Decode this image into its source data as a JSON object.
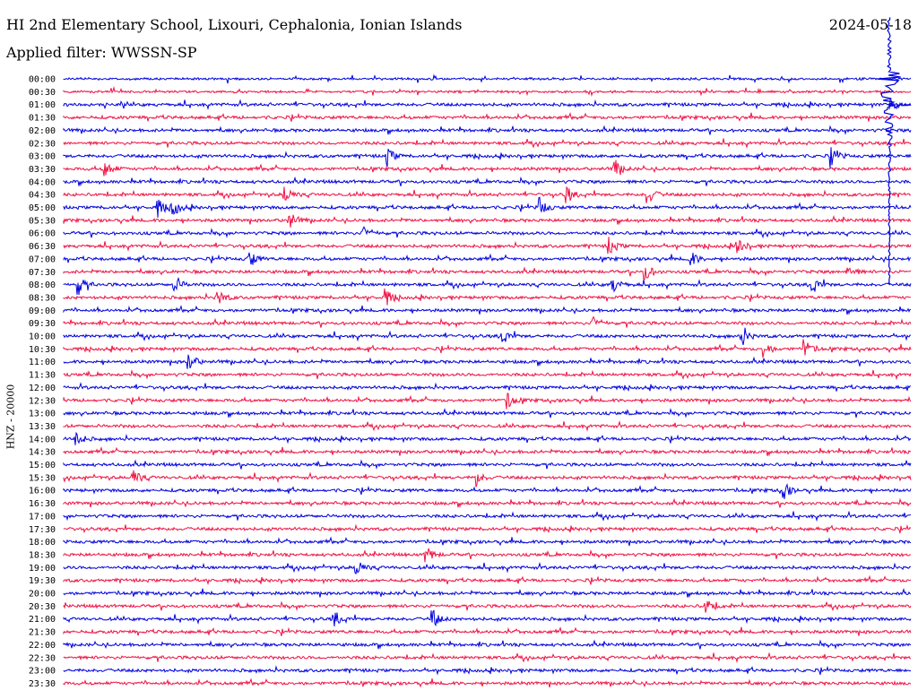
{
  "header": {
    "title": "HI 2nd Elementary School, Lixouri, Cephalonia, Ionian Islands",
    "filter": "Applied filter: WWSSN-SP",
    "date": "2024-05-18"
  },
  "axis": {
    "ylabel": "HNZ - 20000"
  },
  "colors": {
    "blue": "#0000dd",
    "red": "#ee1144"
  },
  "rows": [
    "00:00",
    "00:30",
    "01:00",
    "01:30",
    "02:00",
    "02:30",
    "03:00",
    "03:30",
    "04:00",
    "04:30",
    "05:00",
    "05:30",
    "06:00",
    "06:30",
    "07:00",
    "07:30",
    "08:00",
    "08:30",
    "09:00",
    "09:30",
    "10:00",
    "10:30",
    "11:00",
    "11:30",
    "12:00",
    "12:30",
    "13:00",
    "13:30",
    "14:00",
    "14:30",
    "15:00",
    "15:30",
    "16:00",
    "16:30",
    "17:00",
    "17:30",
    "18:00",
    "18:30",
    "19:00",
    "19:30",
    "20:00",
    "20:30",
    "21:00",
    "21:30",
    "22:00",
    "22:30",
    "23:00",
    "23:30"
  ]
}
